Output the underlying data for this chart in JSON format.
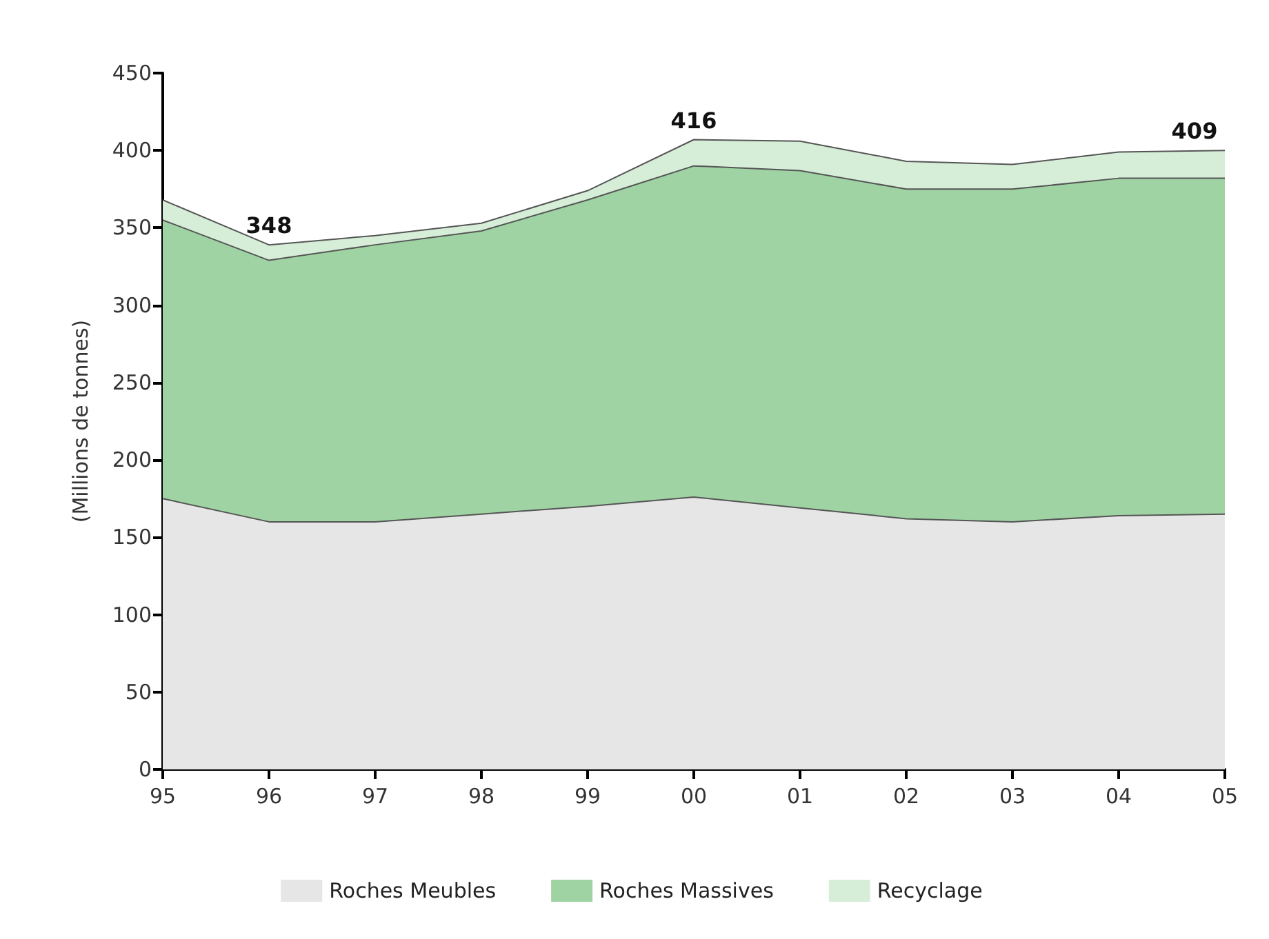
{
  "chart_data": {
    "type": "area",
    "stacked": true,
    "ylabel": "(Millions de tonnes)",
    "categories": [
      "95",
      "96",
      "97",
      "98",
      "99",
      "00",
      "01",
      "02",
      "03",
      "04",
      "05"
    ],
    "series": [
      {
        "name": "Roches Meubles",
        "color": "#e6e6e6",
        "values": [
          175,
          160,
          160,
          165,
          170,
          176,
          169,
          162,
          160,
          164,
          165
        ]
      },
      {
        "name": "Roches Massives",
        "color": "#9fd3a3",
        "values": [
          180,
          169,
          179,
          183,
          198,
          214,
          218,
          213,
          215,
          218,
          217
        ]
      },
      {
        "name": "Recyclage",
        "color": "#d6eed8",
        "values": [
          13,
          10,
          6,
          5,
          6,
          17,
          19,
          18,
          16,
          17,
          18
        ]
      }
    ],
    "ylim": [
      0,
      450
    ],
    "yticks": [
      0,
      50,
      100,
      150,
      200,
      250,
      300,
      350,
      400,
      450
    ],
    "grid": false,
    "legend": "bottom",
    "annotations": [
      "348",
      "416",
      "409"
    ]
  }
}
